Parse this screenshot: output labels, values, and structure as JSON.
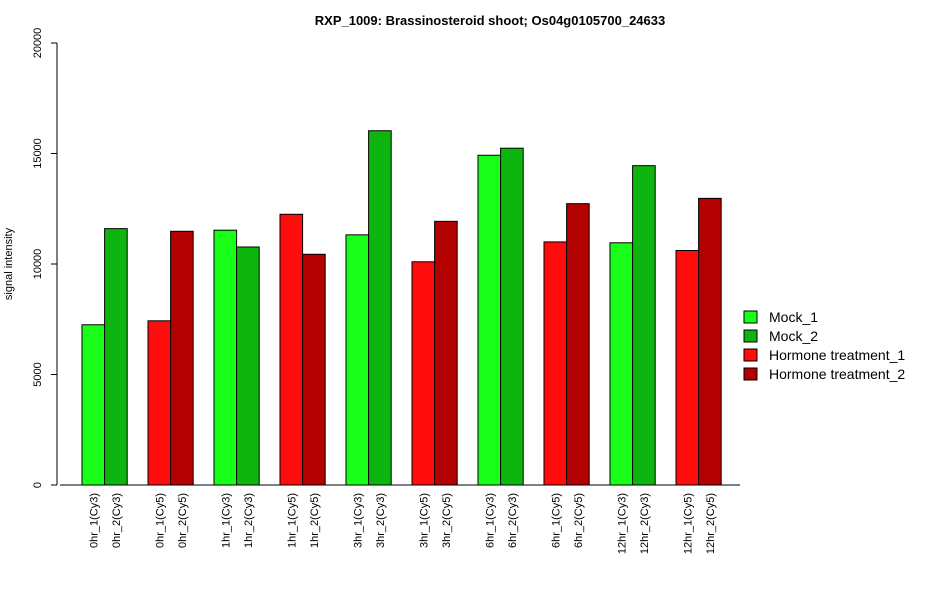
{
  "chart_data": {
    "type": "bar",
    "title": "RXP_1009: Brassinosteroid shoot; Os04g0105700_24633",
    "xlabel": "",
    "ylabel": "signal intensity",
    "ylim": [
      0,
      20000
    ],
    "yticks": [
      0,
      5000,
      10000,
      15000,
      20000
    ],
    "grid": false,
    "legend_position": "right",
    "groups": [
      {
        "bars": [
          {
            "label": "0hr_1(Cy3)",
            "value": 7250,
            "series": "Mock_1"
          },
          {
            "label": "0hr_2(Cy3)",
            "value": 11600,
            "series": "Mock_2"
          }
        ]
      },
      {
        "bars": [
          {
            "label": "0hr_1(Cy5)",
            "value": 7430,
            "series": "Hormone treatment_1"
          },
          {
            "label": "0hr_2(Cy5)",
            "value": 11480,
            "series": "Hormone treatment_2"
          }
        ]
      },
      {
        "bars": [
          {
            "label": "1hr_1(Cy3)",
            "value": 11530,
            "series": "Mock_1"
          },
          {
            "label": "1hr_2(Cy3)",
            "value": 10770,
            "series": "Mock_2"
          }
        ]
      },
      {
        "bars": [
          {
            "label": "1hr_1(Cy5)",
            "value": 12250,
            "series": "Hormone treatment_1"
          },
          {
            "label": "1hr_2(Cy5)",
            "value": 10440,
            "series": "Hormone treatment_2"
          }
        ]
      },
      {
        "bars": [
          {
            "label": "3hr_1(Cy3)",
            "value": 11320,
            "series": "Mock_1"
          },
          {
            "label": "3hr_2(Cy3)",
            "value": 16030,
            "series": "Mock_2"
          }
        ]
      },
      {
        "bars": [
          {
            "label": "3hr_1(Cy5)",
            "value": 10100,
            "series": "Hormone treatment_1"
          },
          {
            "label": "3hr_2(Cy5)",
            "value": 11930,
            "series": "Hormone treatment_2"
          }
        ]
      },
      {
        "bars": [
          {
            "label": "6hr_1(Cy3)",
            "value": 14920,
            "series": "Mock_1"
          },
          {
            "label": "6hr_2(Cy3)",
            "value": 15240,
            "series": "Mock_2"
          }
        ]
      },
      {
        "bars": [
          {
            "label": "6hr_1(Cy5)",
            "value": 11000,
            "series": "Hormone treatment_1"
          },
          {
            "label": "6hr_2(Cy5)",
            "value": 12730,
            "series": "Hormone treatment_2"
          }
        ]
      },
      {
        "bars": [
          {
            "label": "12hr_1(Cy3)",
            "value": 10960,
            "series": "Mock_1"
          },
          {
            "label": "12hr_2(Cy3)",
            "value": 14450,
            "series": "Mock_2"
          }
        ]
      },
      {
        "bars": [
          {
            "label": "12hr_1(Cy5)",
            "value": 10610,
            "series": "Hormone treatment_1"
          },
          {
            "label": "12hr_2(Cy5)",
            "value": 12970,
            "series": "Hormone treatment_2"
          }
        ]
      }
    ],
    "legend": [
      {
        "name": "Mock_1",
        "color": "#1aff1a"
      },
      {
        "name": "Mock_2",
        "color": "#0fb50f"
      },
      {
        "name": "Hormone treatment_1",
        "color": "#ff0d0d"
      },
      {
        "name": "Hormone treatment_2",
        "color": "#b30000"
      }
    ]
  }
}
